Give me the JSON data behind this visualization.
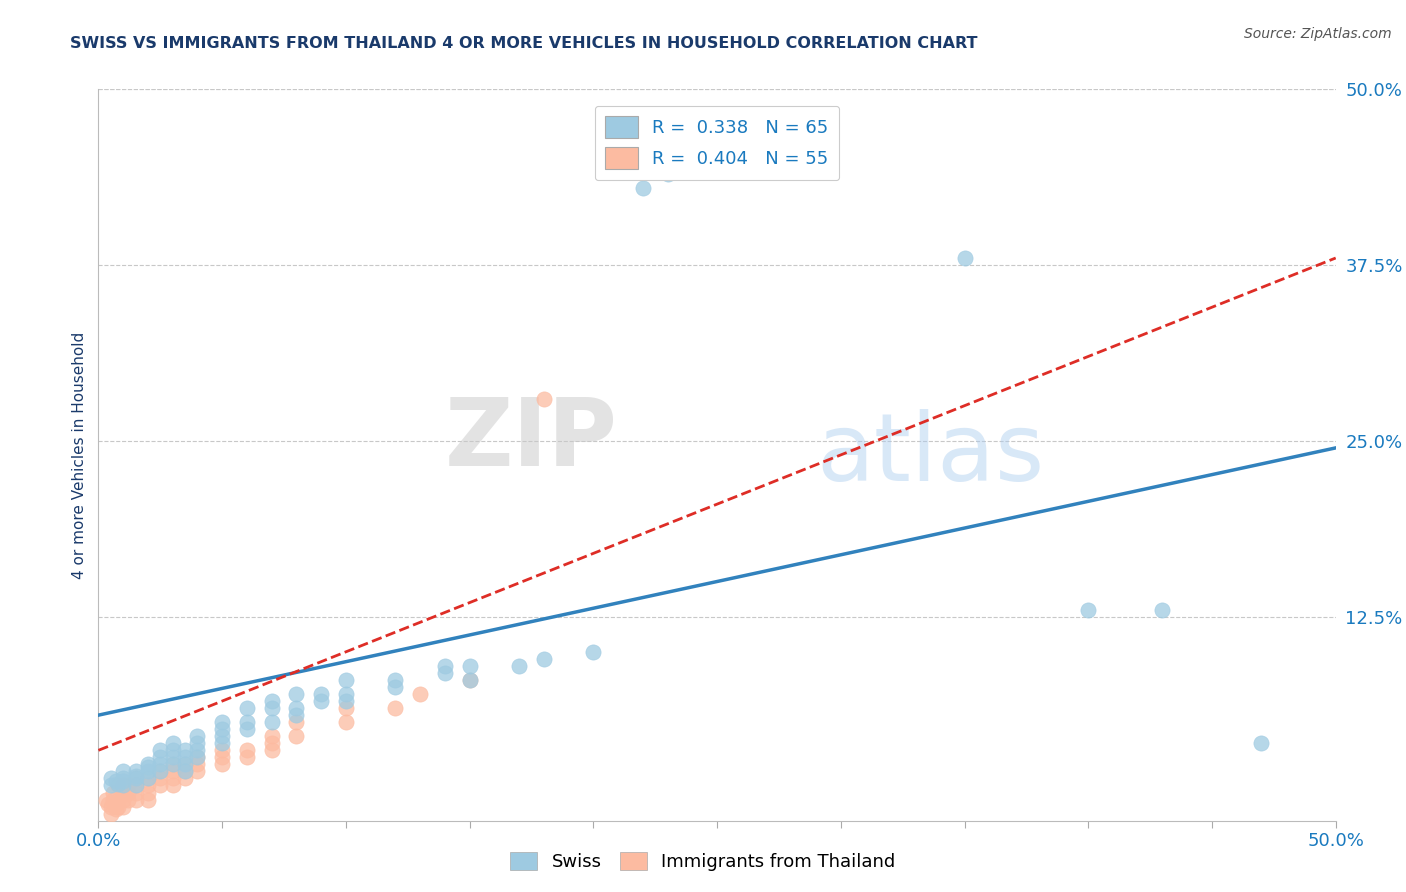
{
  "title": "SWISS VS IMMIGRANTS FROM THAILAND 4 OR MORE VEHICLES IN HOUSEHOLD CORRELATION CHART",
  "source_text": "Source: ZipAtlas.com",
  "ylabel": "4 or more Vehicles in Household",
  "xlim": [
    0.0,
    0.5
  ],
  "ylim": [
    -0.02,
    0.5
  ],
  "yticks_right": [
    0.125,
    0.25,
    0.375,
    0.5
  ],
  "ytick_labels_right": [
    "12.5%",
    "25.0%",
    "37.5%",
    "50.0%"
  ],
  "watermark_zip": "ZIP",
  "watermark_atlas": "atlas",
  "swiss_R": 0.338,
  "swiss_N": 65,
  "thailand_R": 0.404,
  "thailand_N": 55,
  "swiss_color": "#9ecae1",
  "thailand_color": "#fcbba1",
  "swiss_line_color": "#3182bd",
  "thailand_line_color": "#de2d26",
  "background_color": "#ffffff",
  "grid_color": "#c8c8c8",
  "title_color": "#1a3a6b",
  "axis_label_color": "#1a3a6b",
  "right_tick_color": "#1a7abf",
  "swiss_line_x": [
    0.0,
    0.5
  ],
  "swiss_line_y": [
    0.055,
    0.245
  ],
  "thailand_line_x": [
    0.0,
    0.5
  ],
  "thailand_line_y": [
    0.03,
    0.38
  ],
  "swiss_scatter": [
    [
      0.005,
      0.005
    ],
    [
      0.005,
      0.01
    ],
    [
      0.007,
      0.008
    ],
    [
      0.008,
      0.006
    ],
    [
      0.01,
      0.01
    ],
    [
      0.01,
      0.015
    ],
    [
      0.01,
      0.008
    ],
    [
      0.01,
      0.005
    ],
    [
      0.015,
      0.015
    ],
    [
      0.015,
      0.01
    ],
    [
      0.015,
      0.012
    ],
    [
      0.015,
      0.005
    ],
    [
      0.02,
      0.02
    ],
    [
      0.02,
      0.015
    ],
    [
      0.02,
      0.018
    ],
    [
      0.02,
      0.01
    ],
    [
      0.025,
      0.02
    ],
    [
      0.025,
      0.025
    ],
    [
      0.025,
      0.015
    ],
    [
      0.025,
      0.03
    ],
    [
      0.03,
      0.025
    ],
    [
      0.03,
      0.02
    ],
    [
      0.03,
      0.03
    ],
    [
      0.03,
      0.035
    ],
    [
      0.035,
      0.03
    ],
    [
      0.035,
      0.025
    ],
    [
      0.035,
      0.02
    ],
    [
      0.035,
      0.015
    ],
    [
      0.04,
      0.04
    ],
    [
      0.04,
      0.03
    ],
    [
      0.04,
      0.035
    ],
    [
      0.04,
      0.025
    ],
    [
      0.05,
      0.04
    ],
    [
      0.05,
      0.05
    ],
    [
      0.05,
      0.035
    ],
    [
      0.05,
      0.045
    ],
    [
      0.06,
      0.05
    ],
    [
      0.06,
      0.06
    ],
    [
      0.06,
      0.045
    ],
    [
      0.07,
      0.06
    ],
    [
      0.07,
      0.05
    ],
    [
      0.07,
      0.065
    ],
    [
      0.08,
      0.07
    ],
    [
      0.08,
      0.06
    ],
    [
      0.08,
      0.055
    ],
    [
      0.09,
      0.07
    ],
    [
      0.09,
      0.065
    ],
    [
      0.1,
      0.07
    ],
    [
      0.1,
      0.08
    ],
    [
      0.1,
      0.065
    ],
    [
      0.12,
      0.08
    ],
    [
      0.12,
      0.075
    ],
    [
      0.14,
      0.09
    ],
    [
      0.14,
      0.085
    ],
    [
      0.15,
      0.08
    ],
    [
      0.15,
      0.09
    ],
    [
      0.17,
      0.09
    ],
    [
      0.18,
      0.095
    ],
    [
      0.2,
      0.1
    ],
    [
      0.22,
      0.43
    ],
    [
      0.23,
      0.44
    ],
    [
      0.35,
      0.38
    ],
    [
      0.4,
      0.13
    ],
    [
      0.43,
      0.13
    ],
    [
      0.47,
      0.035
    ]
  ],
  "thailand_scatter": [
    [
      0.003,
      -0.005
    ],
    [
      0.004,
      -0.008
    ],
    [
      0.005,
      -0.01
    ],
    [
      0.005,
      -0.015
    ],
    [
      0.006,
      -0.005
    ],
    [
      0.006,
      0.0
    ],
    [
      0.007,
      -0.008
    ],
    [
      0.007,
      -0.012
    ],
    [
      0.008,
      -0.005
    ],
    [
      0.008,
      -0.01
    ],
    [
      0.008,
      0.005
    ],
    [
      0.01,
      0.0
    ],
    [
      0.01,
      -0.005
    ],
    [
      0.01,
      -0.01
    ],
    [
      0.01,
      0.005
    ],
    [
      0.012,
      0.0
    ],
    [
      0.012,
      -0.005
    ],
    [
      0.012,
      0.005
    ],
    [
      0.015,
      0.005
    ],
    [
      0.015,
      0.0
    ],
    [
      0.015,
      -0.005
    ],
    [
      0.015,
      0.01
    ],
    [
      0.02,
      0.01
    ],
    [
      0.02,
      0.005
    ],
    [
      0.02,
      0.0
    ],
    [
      0.02,
      -0.005
    ],
    [
      0.025,
      0.01
    ],
    [
      0.025,
      0.005
    ],
    [
      0.025,
      0.015
    ],
    [
      0.03,
      0.015
    ],
    [
      0.03,
      0.01
    ],
    [
      0.03,
      0.005
    ],
    [
      0.03,
      0.02
    ],
    [
      0.035,
      0.015
    ],
    [
      0.035,
      0.02
    ],
    [
      0.035,
      0.01
    ],
    [
      0.04,
      0.02
    ],
    [
      0.04,
      0.015
    ],
    [
      0.04,
      0.025
    ],
    [
      0.05,
      0.025
    ],
    [
      0.05,
      0.02
    ],
    [
      0.05,
      0.03
    ],
    [
      0.06,
      0.03
    ],
    [
      0.06,
      0.025
    ],
    [
      0.07,
      0.04
    ],
    [
      0.07,
      0.03
    ],
    [
      0.07,
      0.035
    ],
    [
      0.08,
      0.04
    ],
    [
      0.08,
      0.05
    ],
    [
      0.1,
      0.05
    ],
    [
      0.1,
      0.06
    ],
    [
      0.12,
      0.06
    ],
    [
      0.13,
      0.07
    ],
    [
      0.15,
      0.08
    ],
    [
      0.18,
      0.28
    ]
  ]
}
